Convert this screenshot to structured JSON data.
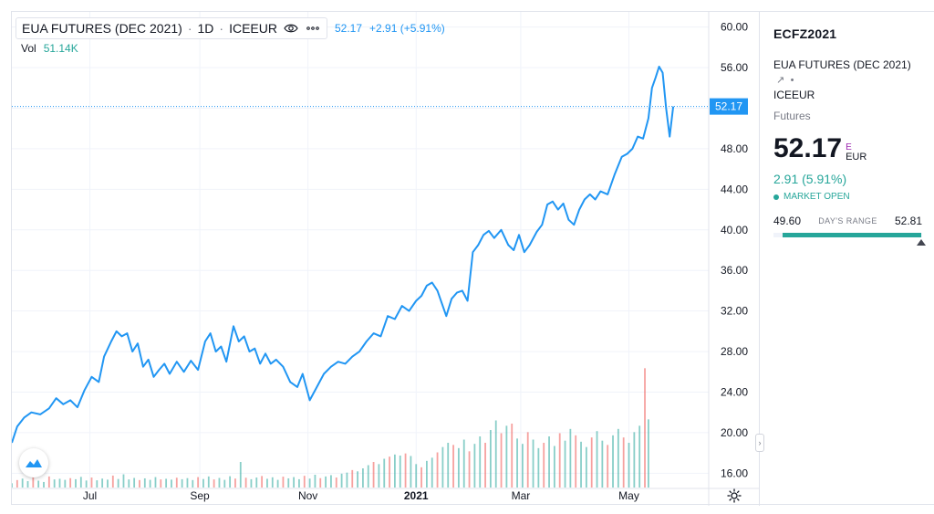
{
  "header": {
    "symbol_title": "EUA FUTURES (DEC 2021)",
    "interval": "1D",
    "exchange": "ICEEUR",
    "last_price": "52.17",
    "change_text": "+2.91 (+5.91%)",
    "volume_label": "Vol",
    "volume_value": "51.14K"
  },
  "price_tag": "52.17",
  "sidebar": {
    "symbol": "ECFZ2021",
    "description": "EUA FUTURES (DEC 2021)",
    "exchange": "ICEEUR",
    "type": "Futures",
    "price": "52.17",
    "currency_marker": "E",
    "currency": "EUR",
    "change": "2.91 (5.91%)",
    "market_status": "MARKET OPEN",
    "range_low": "49.60",
    "range_label": "DAY'S RANGE",
    "range_high": "52.81",
    "range_position": 0.98
  },
  "colors": {
    "line": "#2196f3",
    "up_volume": "#26a69a",
    "down_volume": "#ef5350",
    "accent": "#26a69a"
  },
  "chart_data": {
    "type": "line",
    "x_ticks": [
      "Jul",
      "Sep",
      "Nov",
      "2021",
      "Mar",
      "May"
    ],
    "x_tick_dates": [
      "2020-07-01",
      "2020-09-01",
      "2020-11-01",
      "2021-01-01",
      "2021-03-01",
      "2021-05-01"
    ],
    "x_range": [
      "2020-05-18",
      "2021-06-15"
    ],
    "y_ticks": [
      16,
      20,
      24,
      28,
      32,
      36,
      40,
      44,
      48,
      52,
      56,
      60
    ],
    "y_tick_labels": [
      "16.00",
      "20.00",
      "24.00",
      "28.00",
      "32.00",
      "36.00",
      "40.00",
      "44.00",
      "48.00",
      "52.00",
      "56.00",
      "60.00"
    ],
    "ylim": [
      14.5,
      61.5
    ],
    "last_value": 52.17,
    "series": [
      {
        "points": [
          [
            "2020-05-18",
            19.0
          ],
          [
            "2020-05-21",
            20.6
          ],
          [
            "2020-05-25",
            21.5
          ],
          [
            "2020-05-29",
            22.0
          ],
          [
            "2020-06-03",
            21.8
          ],
          [
            "2020-06-08",
            22.4
          ],
          [
            "2020-06-12",
            23.4
          ],
          [
            "2020-06-16",
            22.8
          ],
          [
            "2020-06-20",
            23.2
          ],
          [
            "2020-06-24",
            22.5
          ],
          [
            "2020-06-28",
            24.2
          ],
          [
            "2020-07-02",
            25.5
          ],
          [
            "2020-07-06",
            25.0
          ],
          [
            "2020-07-09",
            27.5
          ],
          [
            "2020-07-13",
            29.0
          ],
          [
            "2020-07-16",
            30.0
          ],
          [
            "2020-07-19",
            29.5
          ],
          [
            "2020-07-22",
            29.8
          ],
          [
            "2020-07-25",
            28.0
          ],
          [
            "2020-07-28",
            28.8
          ],
          [
            "2020-07-31",
            26.5
          ],
          [
            "2020-08-03",
            27.2
          ],
          [
            "2020-08-06",
            25.5
          ],
          [
            "2020-08-09",
            26.2
          ],
          [
            "2020-08-12",
            26.8
          ],
          [
            "2020-08-15",
            25.8
          ],
          [
            "2020-08-19",
            27.0
          ],
          [
            "2020-08-23",
            26.0
          ],
          [
            "2020-08-27",
            27.1
          ],
          [
            "2020-08-31",
            26.2
          ],
          [
            "2020-09-04",
            29.0
          ],
          [
            "2020-09-07",
            29.8
          ],
          [
            "2020-09-10",
            28.0
          ],
          [
            "2020-09-13",
            28.5
          ],
          [
            "2020-09-16",
            27.0
          ],
          [
            "2020-09-20",
            30.5
          ],
          [
            "2020-09-23",
            29.0
          ],
          [
            "2020-09-26",
            29.5
          ],
          [
            "2020-09-29",
            28.0
          ],
          [
            "2020-10-02",
            28.3
          ],
          [
            "2020-10-05",
            26.8
          ],
          [
            "2020-10-08",
            27.8
          ],
          [
            "2020-10-11",
            26.8
          ],
          [
            "2020-10-14",
            27.2
          ],
          [
            "2020-10-18",
            26.5
          ],
          [
            "2020-10-22",
            25.0
          ],
          [
            "2020-10-26",
            24.5
          ],
          [
            "2020-10-29",
            25.8
          ],
          [
            "2020-11-02",
            23.2
          ],
          [
            "2020-11-06",
            24.5
          ],
          [
            "2020-11-10",
            25.8
          ],
          [
            "2020-11-14",
            26.5
          ],
          [
            "2020-11-18",
            27.0
          ],
          [
            "2020-11-22",
            26.8
          ],
          [
            "2020-11-26",
            27.5
          ],
          [
            "2020-11-30",
            28.0
          ],
          [
            "2020-12-04",
            29.0
          ],
          [
            "2020-12-08",
            29.8
          ],
          [
            "2020-12-12",
            29.5
          ],
          [
            "2020-12-16",
            31.5
          ],
          [
            "2020-12-20",
            31.2
          ],
          [
            "2020-12-24",
            32.5
          ],
          [
            "2020-12-28",
            32.0
          ],
          [
            "2021-01-01",
            33.0
          ],
          [
            "2021-01-04",
            33.5
          ],
          [
            "2021-01-07",
            34.5
          ],
          [
            "2021-01-10",
            34.8
          ],
          [
            "2021-01-13",
            34.0
          ],
          [
            "2021-01-16",
            32.5
          ],
          [
            "2021-01-18",
            31.5
          ],
          [
            "2021-01-21",
            33.2
          ],
          [
            "2021-01-24",
            33.8
          ],
          [
            "2021-01-27",
            34.0
          ],
          [
            "2021-01-30",
            33.0
          ],
          [
            "2021-02-02",
            37.8
          ],
          [
            "2021-02-05",
            38.5
          ],
          [
            "2021-02-08",
            39.5
          ],
          [
            "2021-02-11",
            39.9
          ],
          [
            "2021-02-14",
            39.2
          ],
          [
            "2021-02-18",
            40.0
          ],
          [
            "2021-02-22",
            38.5
          ],
          [
            "2021-02-25",
            38.0
          ],
          [
            "2021-02-28",
            39.5
          ],
          [
            "2021-03-03",
            37.8
          ],
          [
            "2021-03-06",
            38.5
          ],
          [
            "2021-03-10",
            39.8
          ],
          [
            "2021-03-13",
            40.5
          ],
          [
            "2021-03-16",
            42.5
          ],
          [
            "2021-03-19",
            42.8
          ],
          [
            "2021-03-22",
            42.0
          ],
          [
            "2021-03-25",
            42.6
          ],
          [
            "2021-03-28",
            41.0
          ],
          [
            "2021-03-31",
            40.5
          ],
          [
            "2021-04-03",
            42.0
          ],
          [
            "2021-04-06",
            43.0
          ],
          [
            "2021-04-09",
            43.5
          ],
          [
            "2021-04-12",
            43.0
          ],
          [
            "2021-04-15",
            43.8
          ],
          [
            "2021-04-19",
            43.5
          ],
          [
            "2021-04-23",
            45.5
          ],
          [
            "2021-04-27",
            47.2
          ],
          [
            "2021-04-30",
            47.5
          ],
          [
            "2021-05-03",
            48.0
          ],
          [
            "2021-05-06",
            49.2
          ],
          [
            "2021-05-09",
            49.0
          ],
          [
            "2021-05-12",
            51.0
          ],
          [
            "2021-05-14",
            54.0
          ],
          [
            "2021-05-16",
            55.0
          ],
          [
            "2021-05-18",
            56.1
          ],
          [
            "2021-05-20",
            55.5
          ],
          [
            "2021-05-22",
            52.0
          ],
          [
            "2021-05-24",
            49.2
          ],
          [
            "2021-05-26",
            52.17
          ]
        ]
      }
    ],
    "volume": {
      "ylim": [
        0,
        60000
      ],
      "bars": [
        [
          0,
          2000,
          1
        ],
        [
          3,
          3500,
          0
        ],
        [
          6,
          4200,
          1
        ],
        [
          9,
          3000,
          1
        ],
        [
          12,
          4800,
          0
        ],
        [
          15,
          3200,
          1
        ],
        [
          18,
          2600,
          1
        ],
        [
          21,
          5200,
          0
        ],
        [
          24,
          3800,
          1
        ],
        [
          27,
          4100,
          1
        ],
        [
          30,
          3600,
          1
        ],
        [
          33,
          4400,
          0
        ],
        [
          36,
          3900,
          1
        ],
        [
          39,
          5000,
          1
        ],
        [
          42,
          3300,
          1
        ],
        [
          45,
          4700,
          0
        ],
        [
          48,
          3400,
          1
        ],
        [
          51,
          4200,
          1
        ],
        [
          54,
          3700,
          1
        ],
        [
          57,
          5600,
          0
        ],
        [
          60,
          4000,
          1
        ],
        [
          63,
          6200,
          1
        ],
        [
          66,
          3800,
          1
        ],
        [
          69,
          4500,
          1
        ],
        [
          72,
          3500,
          0
        ],
        [
          75,
          4300,
          1
        ],
        [
          78,
          3600,
          1
        ],
        [
          81,
          4900,
          1
        ],
        [
          84,
          3800,
          0
        ],
        [
          87,
          4100,
          1
        ],
        [
          90,
          3700,
          1
        ],
        [
          93,
          4600,
          0
        ],
        [
          96,
          3900,
          1
        ],
        [
          99,
          4400,
          1
        ],
        [
          102,
          3500,
          1
        ],
        [
          105,
          4900,
          0
        ],
        [
          108,
          4000,
          1
        ],
        [
          111,
          5200,
          1
        ],
        [
          114,
          3800,
          0
        ],
        [
          117,
          4500,
          1
        ],
        [
          120,
          3600,
          1
        ],
        [
          123,
          5300,
          1
        ],
        [
          126,
          4200,
          0
        ],
        [
          129,
          12000,
          1
        ],
        [
          132,
          4600,
          0
        ],
        [
          135,
          3900,
          1
        ],
        [
          138,
          4700,
          1
        ],
        [
          141,
          5400,
          0
        ],
        [
          144,
          4100,
          1
        ],
        [
          147,
          4800,
          1
        ],
        [
          150,
          3600,
          1
        ],
        [
          153,
          5100,
          0
        ],
        [
          156,
          4300,
          1
        ],
        [
          159,
          4900,
          1
        ],
        [
          162,
          3900,
          1
        ],
        [
          165,
          5500,
          0
        ],
        [
          168,
          4200,
          1
        ],
        [
          171,
          6000,
          1
        ],
        [
          174,
          4400,
          0
        ],
        [
          177,
          5200,
          1
        ],
        [
          180,
          5800,
          1
        ],
        [
          183,
          4700,
          0
        ],
        [
          186,
          6500,
          1
        ],
        [
          189,
          7000,
          1
        ],
        [
          192,
          8200,
          0
        ],
        [
          195,
          7600,
          1
        ],
        [
          198,
          9000,
          1
        ],
        [
          201,
          10500,
          1
        ],
        [
          204,
          12000,
          0
        ],
        [
          207,
          11000,
          1
        ],
        [
          210,
          13500,
          1
        ],
        [
          213,
          14500,
          0
        ],
        [
          216,
          15500,
          1
        ],
        [
          219,
          15000,
          1
        ],
        [
          222,
          16000,
          0
        ],
        [
          225,
          14800,
          1
        ],
        [
          228,
          11000,
          1
        ],
        [
          231,
          9500,
          0
        ],
        [
          234,
          12500,
          1
        ],
        [
          237,
          14000,
          1
        ],
        [
          240,
          16500,
          0
        ],
        [
          243,
          19000,
          1
        ],
        [
          246,
          21000,
          1
        ],
        [
          249,
          20000,
          0
        ],
        [
          252,
          18500,
          1
        ],
        [
          255,
          22500,
          1
        ],
        [
          258,
          17000,
          0
        ],
        [
          261,
          20500,
          1
        ],
        [
          264,
          24000,
          1
        ],
        [
          267,
          21000,
          0
        ],
        [
          270,
          27000,
          1
        ],
        [
          273,
          31500,
          1
        ],
        [
          276,
          25500,
          0
        ],
        [
          279,
          29000,
          1
        ],
        [
          282,
          30000,
          0
        ],
        [
          285,
          23000,
          1
        ],
        [
          288,
          20500,
          1
        ],
        [
          291,
          26000,
          0
        ],
        [
          294,
          22500,
          1
        ],
        [
          297,
          18500,
          1
        ],
        [
          300,
          21000,
          0
        ],
        [
          303,
          24000,
          1
        ],
        [
          306,
          19500,
          1
        ],
        [
          309,
          25500,
          0
        ],
        [
          312,
          22000,
          1
        ],
        [
          315,
          27500,
          1
        ],
        [
          318,
          24500,
          0
        ],
        [
          321,
          21500,
          1
        ],
        [
          324,
          19000,
          1
        ],
        [
          327,
          23500,
          0
        ],
        [
          330,
          26500,
          1
        ],
        [
          333,
          22000,
          1
        ],
        [
          336,
          20000,
          0
        ],
        [
          339,
          24500,
          1
        ],
        [
          342,
          27500,
          1
        ],
        [
          345,
          23500,
          0
        ],
        [
          348,
          21000,
          1
        ],
        [
          351,
          26000,
          1
        ],
        [
          354,
          29000,
          1
        ],
        [
          357,
          56000,
          0
        ],
        [
          359,
          32000,
          1
        ]
      ]
    }
  }
}
